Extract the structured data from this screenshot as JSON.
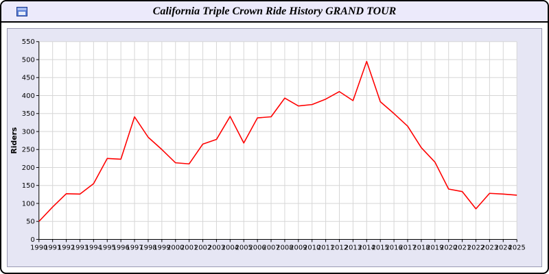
{
  "window": {
    "title": "California Triple Crown Ride History GRAND TOUR",
    "icon": "app-window-icon"
  },
  "chart_data": {
    "type": "line",
    "title": "California Triple Crown Ride History GRAND TOUR",
    "xlabel": "",
    "ylabel": "Riders",
    "ylim": [
      0,
      550
    ],
    "ytick_step": 50,
    "grid": true,
    "legend": "none",
    "plot_bg": "#ffffff",
    "panel_bg": "#e6e6f4",
    "grid_color": "#d6d6d6",
    "axis_color": "#000000",
    "x": [
      1990,
      1991,
      1992,
      1993,
      1994,
      1995,
      1996,
      1997,
      1998,
      1999,
      2000,
      2001,
      2002,
      2003,
      2004,
      2005,
      2006,
      2007,
      2008,
      2009,
      2010,
      2011,
      2012,
      2013,
      2014,
      2015,
      2016,
      2017,
      2018,
      2019,
      2020,
      2021,
      2022,
      2023,
      2024,
      2025
    ],
    "series": [
      {
        "name": "Riders",
        "color": "#ff0000",
        "values": [
          50,
          90,
          127,
          126,
          155,
          225,
          223,
          341,
          284,
          250,
          213,
          210,
          265,
          278,
          342,
          268,
          338,
          341,
          393,
          371,
          375,
          390,
          411,
          386,
          495,
          383,
          350,
          315,
          255,
          215,
          140,
          133,
          85,
          128,
          126,
          123
        ]
      }
    ]
  }
}
